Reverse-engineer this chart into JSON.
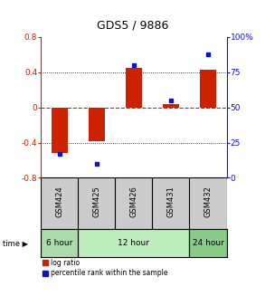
{
  "title": "GDS5 / 9886",
  "samples": [
    "GSM424",
    "GSM425",
    "GSM426",
    "GSM431",
    "GSM432"
  ],
  "log_ratio": [
    -0.52,
    -0.38,
    0.45,
    0.04,
    0.43
  ],
  "percentile": [
    17,
    10,
    80,
    55,
    88
  ],
  "bar_color_red": "#cc2200",
  "bar_color_blue": "#1111cc",
  "left_axis_color": "#cc2200",
  "right_axis_color": "#1111cc",
  "ylim_left": [
    -0.8,
    0.8
  ],
  "ylim_right": [
    0,
    100
  ],
  "yticks_left": [
    -0.8,
    -0.4,
    0,
    0.4,
    0.8
  ],
  "yticks_right": [
    0,
    25,
    50,
    75,
    100
  ],
  "time_info": [
    {
      "label": "6 hour",
      "start": 0,
      "end": 0,
      "color": "#aaddaa"
    },
    {
      "label": "12 hour",
      "start": 1,
      "end": 3,
      "color": "#bbeebb"
    },
    {
      "label": "24 hour",
      "start": 4,
      "end": 4,
      "color": "#88cc88"
    }
  ],
  "sample_bg": "#cccccc",
  "bar_width": 0.45
}
